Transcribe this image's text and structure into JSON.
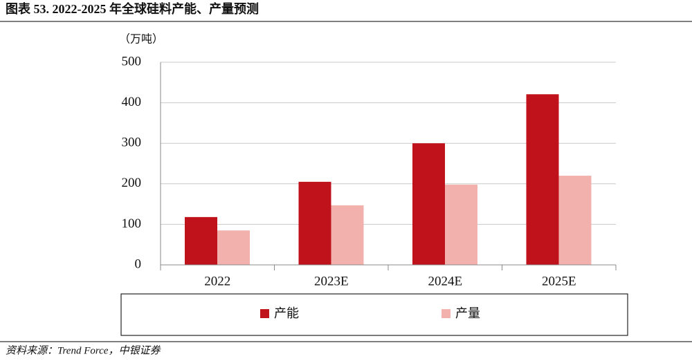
{
  "chart_data": {
    "type": "bar",
    "title": "图表 53. 2022-2025 年全球硅料产能、产量预测",
    "y_label": "（万吨）",
    "categories": [
      "2022",
      "2023E",
      "2024E",
      "2025E"
    ],
    "series": [
      {
        "name": "产能",
        "color": "#c0121b",
        "values": [
          118,
          205,
          300,
          421
        ]
      },
      {
        "name": "产量",
        "color": "#f2b1ad",
        "values": [
          85,
          147,
          198,
          220
        ]
      }
    ],
    "ylim": [
      0,
      500
    ],
    "yticks": [
      0,
      100,
      200,
      300,
      400,
      500
    ],
    "grid": true,
    "legend": "bottom"
  },
  "source": "资料来源：Trend Force，中银证券"
}
